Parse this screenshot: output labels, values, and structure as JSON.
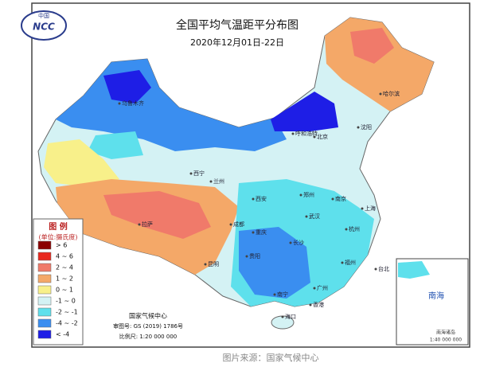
{
  "logo": {
    "top": "中国",
    "acronym": "NCC"
  },
  "header": {
    "title": "全国平均气温距平分布图",
    "subtitle": "2020年12月01日-22日"
  },
  "legend": {
    "title": "图 例",
    "unit": "(单位:摄氏度)",
    "items": [
      {
        "label": "> 6",
        "color": "#8b0000"
      },
      {
        "label": "4 ~ 6",
        "color": "#e8281e"
      },
      {
        "label": "2 ~ 4",
        "color": "#f07a6a"
      },
      {
        "label": "1 ~ 2",
        "color": "#f4a868"
      },
      {
        "label": "0 ~ 1",
        "color": "#f8f08a"
      },
      {
        "label": "-1 ~ 0",
        "color": "#d4f2f4"
      },
      {
        "label": "-2 ~ -1",
        "color": "#5ee0ec"
      },
      {
        "label": "-4 ~ -2",
        "color": "#3a8ef0"
      },
      {
        "label": "< -4",
        "color": "#1e1ee6"
      }
    ]
  },
  "footer": {
    "agency": "国家气候中心",
    "approval": "审图号: GS (2019) 1786号",
    "scale": "比例尺: 1:20 000 000"
  },
  "inset": {
    "label": "南海",
    "islands": "南海诸岛",
    "scale": "1:40 000 000"
  },
  "cities": [
    "乌鲁木齐",
    "呼和浩特",
    "北京",
    "西宁",
    "兰州",
    "西安",
    "郑州",
    "成都",
    "重庆",
    "拉萨",
    "昆明",
    "贵阳",
    "长沙",
    "武汉",
    "南京",
    "上海",
    "杭州",
    "福州",
    "广州",
    "香港",
    "南宁",
    "海口",
    "台北",
    "沈阳",
    "哈尔滨"
  ],
  "caption": "图片来源：国家气候中心"
}
